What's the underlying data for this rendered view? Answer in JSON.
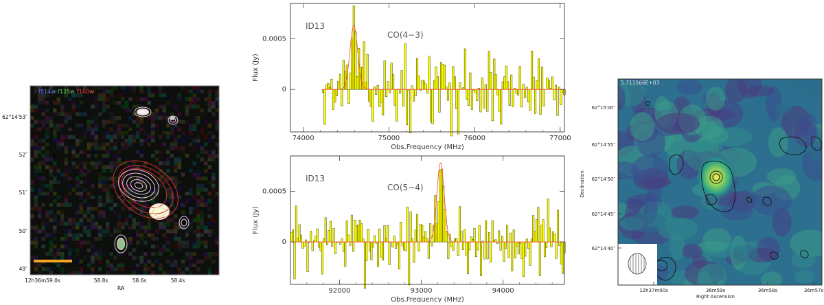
{
  "colors": {
    "hst_bg": "#0d0f0d",
    "scale_bar": "#f5a623",
    "spec_fill": "#ffff00",
    "spec_edge": "#3a3a00",
    "fit_line": "#ff4040",
    "map_bg": "#2d6f8e"
  },
  "hst": {
    "filter_blue": "f814w",
    "filter_green": "f125w",
    "filter_red": "f160w",
    "ylabels": [
      "62°14′53″",
      "52″",
      "51″",
      "50″",
      "49″"
    ],
    "xlabels": [
      "12h36m59.0s",
      "58.8s",
      "58.6s",
      "58.4s"
    ],
    "xlabel": "RA"
  },
  "chart_data": [
    {
      "type": "bar",
      "id": "spec_co43",
      "label_id": "ID13",
      "label_line": "CO(4−3)",
      "xlabel": "Obs.Frequency (MHz)",
      "ylabel": "Flux (Jy)",
      "xlim": [
        73850,
        77050
      ],
      "ylim": [
        -0.00042,
        0.00085
      ],
      "xticks": [
        74000,
        75000,
        76000,
        77000
      ],
      "yticks": [
        0,
        0.0005
      ],
      "ytick_labels": [
        "0",
        "0.0005"
      ],
      "line_center": 74590,
      "line_amp": 0.00055,
      "line_sigma": 45,
      "seed": 13,
      "x_start": 74220,
      "x_end": 77050,
      "bin": 20
    },
    {
      "type": "bar",
      "id": "spec_co54",
      "label_id": "ID13",
      "label_line": "CO(5−4)",
      "xlabel": "Obs.Frequency (MHz)",
      "ylabel": "Flux (Jy)",
      "xlim": [
        91400,
        94750
      ],
      "ylim": [
        -0.00042,
        0.00085
      ],
      "xticks": [
        92000,
        93000,
        94000
      ],
      "yticks": [
        0,
        0.0005
      ],
      "ytick_labels": [
        "0",
        "0.0005"
      ],
      "line_center": 93235,
      "line_amp": 0.00068,
      "line_sigma": 45,
      "seed": 7,
      "x_start": 91400,
      "x_end": 94750,
      "bin": 20
    }
  ],
  "map": {
    "header": "5.711566E+03",
    "xlabel": "Right Ascension",
    "ylabel": "Declination",
    "xlabels": [
      "12h37m00s",
      "36m59s",
      "36m58s",
      "36m57s"
    ],
    "ylabels": [
      "62°15′00″",
      "62°14′55″",
      "62°14′50″",
      "62°14′45″",
      "62°14′40″"
    ]
  }
}
